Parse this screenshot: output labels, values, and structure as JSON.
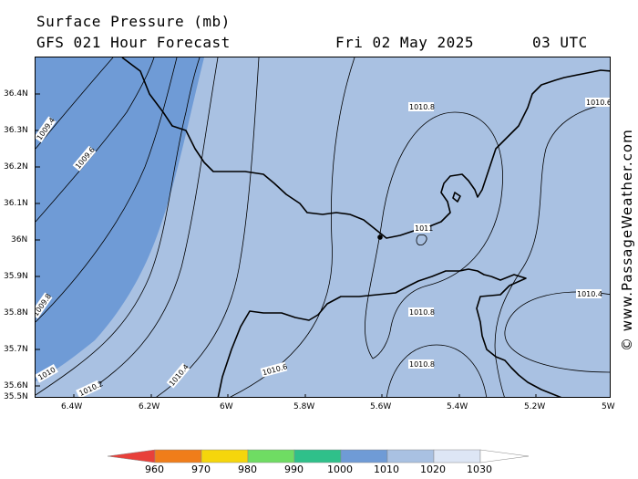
{
  "header": {
    "title": "Surface Pressure (mb)",
    "subtitle": "GFS 021 Hour Forecast",
    "date": "Fri 02 May 2025",
    "time": "03 UTC"
  },
  "watermark": "© www.PassageWeather.com",
  "axes": {
    "lat_labels": [
      "36.4N",
      "36.3N",
      "36.2N",
      "36.1N",
      "36N",
      "35.9N",
      "35.8N",
      "35.7N",
      "35.6N",
      "35.5N"
    ],
    "lon_labels": [
      "6.4W",
      "6.2W",
      "6W",
      "5.8W",
      "5.6W",
      "5.4W",
      "5.2W",
      "5W"
    ]
  },
  "isobar_labels": [
    "1009.4",
    "1009.6",
    "1009.8",
    "1010",
    "1010.2",
    "1010.4",
    "1010.6",
    "1010.8",
    "1011",
    "1010.8",
    "1010.6",
    "1010.4",
    "1010.8"
  ],
  "scale": {
    "labels": [
      "960",
      "970",
      "980",
      "990",
      "1000",
      "1010",
      "1020",
      "1030"
    ],
    "colors": [
      "#e8403a",
      "#f07d1a",
      "#f5d60c",
      "#6fdc63",
      "#2fc08a",
      "#6f9bd6",
      "#a9c1e2",
      "#dde6f5"
    ]
  },
  "colors": {
    "low_band": "#6f9bd6",
    "high_band": "#a9c1e2",
    "coastline": "#000000",
    "isobar": "#000000"
  }
}
